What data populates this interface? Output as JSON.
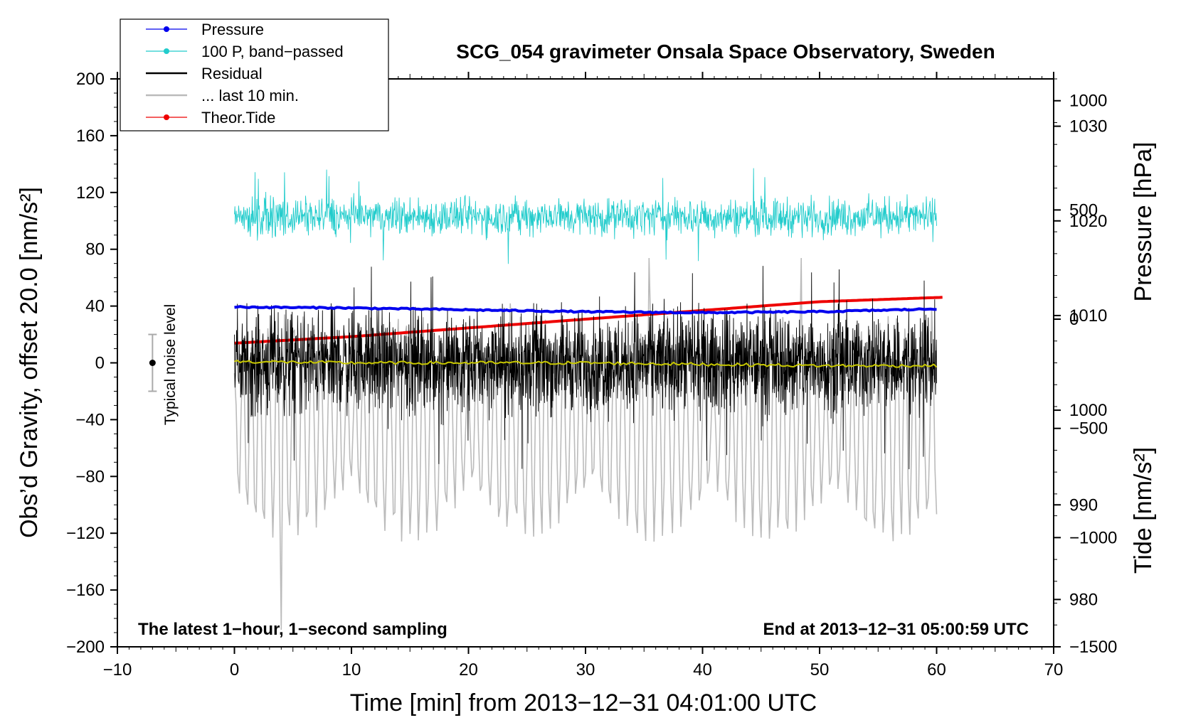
{
  "chart_data": {
    "type": "line",
    "title": "SCG_054 gravimeter Onsala Space Observatory, Sweden",
    "xlabel": "Time [min] from 2013−12−31 04:01:00 UTC",
    "ylabel_left": "Obs’d Gravity, offset 20.0 [nm/s²]",
    "ylabel_right_top": "Pressure [hPa]",
    "ylabel_right_bottom": "Tide [nm/s²]",
    "xlim": [
      -10,
      70
    ],
    "ylim": [
      -200,
      200
    ],
    "pressure_axis_range": [
      975,
      1035
    ],
    "tide_axis_range": [
      -1500,
      1100
    ],
    "x_ticks": [
      {
        "value": -10,
        "label": "−10"
      },
      {
        "value": 0,
        "label": "0"
      },
      {
        "value": 10,
        "label": "10"
      },
      {
        "value": 20,
        "label": "20"
      },
      {
        "value": 30,
        "label": "30"
      },
      {
        "value": 40,
        "label": "40"
      },
      {
        "value": 50,
        "label": "50"
      },
      {
        "value": 60,
        "label": "60"
      },
      {
        "value": 70,
        "label": "70"
      }
    ],
    "y_ticks": [
      {
        "value": 200,
        "label": "200"
      },
      {
        "value": 160,
        "label": "160"
      },
      {
        "value": 120,
        "label": "120"
      },
      {
        "value": 80,
        "label": "80"
      },
      {
        "value": 40,
        "label": "40"
      },
      {
        "value": 0,
        "label": "0"
      },
      {
        "value": -40,
        "label": "−40"
      },
      {
        "value": -80,
        "label": "−80"
      },
      {
        "value": -120,
        "label": "−120"
      },
      {
        "value": -160,
        "label": "−160"
      },
      {
        "value": -200,
        "label": "−200"
      }
    ],
    "pressure_ticks": [
      {
        "value": 1030,
        "label": "1030"
      },
      {
        "value": 1020,
        "label": "1020"
      },
      {
        "value": 1010,
        "label": "1010"
      },
      {
        "value": 1000,
        "label": "1000"
      },
      {
        "value": 990,
        "label": "990"
      },
      {
        "value": 980,
        "label": "980"
      }
    ],
    "tide_ticks": [
      {
        "value": 1000,
        "label": "1000"
      },
      {
        "value": 500,
        "label": "500"
      },
      {
        "value": 0,
        "label": "0"
      },
      {
        "value": -500,
        "label": "−500"
      },
      {
        "value": -1000,
        "label": "−1000"
      },
      {
        "value": -1500,
        "label": "−1500"
      }
    ],
    "legend": {
      "position": "top-left",
      "entries": [
        {
          "label": "Pressure",
          "color": "#0000ee",
          "marker": true
        },
        {
          "label": "100 P, band−passed",
          "color": "#22cccc",
          "marker": true
        },
        {
          "label": "Residual",
          "color": "#000000",
          "marker": false
        },
        {
          "label": "... last 10 min.",
          "color": "#bbbbbb",
          "marker": false
        },
        {
          "label": "Theor.Tide",
          "color": "#ee0000",
          "marker": true
        }
      ]
    },
    "annotations": {
      "bottom_left": "The latest 1−hour, 1−second sampling",
      "bottom_right": "End at 2013−12−31 05:00:59 UTC",
      "noise_label": "Typical noise level"
    },
    "noise_level": {
      "x": -7,
      "center": 0,
      "low": -20,
      "high": 20
    },
    "series": [
      {
        "name": "Pressure",
        "color": "#0000ee",
        "axis": "pressure",
        "kind": "line",
        "x": [
          0,
          10,
          20,
          30,
          40,
          50,
          60
        ],
        "y": [
          1010.9,
          1010.8,
          1010.6,
          1010.4,
          1010.3,
          1010.4,
          1010.7
        ]
      },
      {
        "name": "100 P, band−passed",
        "color": "#22cccc",
        "axis": "left",
        "kind": "band",
        "x_start": 0,
        "x_end": 60,
        "mean": 103,
        "typical_amplitude": 15,
        "peak_amplitude": 35
      },
      {
        "name": "Residual",
        "color": "#000000",
        "axis": "left",
        "kind": "band",
        "x_start": 0,
        "x_end": 60,
        "mean": 0,
        "typical_amplitude": 40,
        "peak_amplitude": 75
      },
      {
        "name": "Residual smoothed",
        "color": "#c8c800",
        "axis": "left",
        "kind": "line",
        "x": [
          0,
          10,
          20,
          30,
          40,
          50,
          60
        ],
        "y": [
          1,
          0,
          0,
          0,
          -1,
          -2,
          -2
        ]
      },
      {
        "name": "... last 10 min.",
        "color": "#bbbbbb",
        "axis": "tide",
        "kind": "band",
        "x_start": 0,
        "x_end": 60,
        "mean": -500,
        "typical_amplitude": 350,
        "peak_amplitude": 1000
      },
      {
        "name": "Theor.Tide",
        "color": "#ee0000",
        "axis": "tide",
        "kind": "line",
        "x": [
          0,
          10,
          20,
          30,
          40,
          50,
          60.5
        ],
        "y": [
          -110,
          -80,
          -40,
          0,
          40,
          80,
          100
        ]
      }
    ]
  }
}
